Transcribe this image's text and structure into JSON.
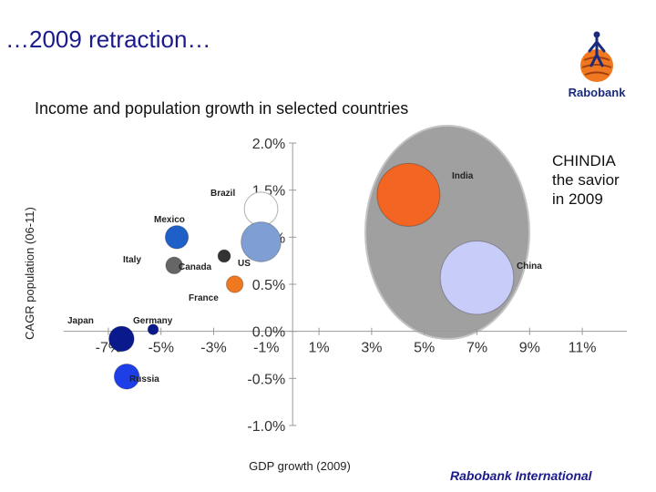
{
  "slide": {
    "title": "…2009 retraction…",
    "callout": "CHINDIA\nthe savior\nin 2009",
    "footer": "Rabobank International"
  },
  "logo": {
    "name": "rabobank-logo",
    "text": "Rabobank"
  },
  "colors": {
    "highlight": "#a0a0a0",
    "india": "#f26522",
    "china": "#c8ccf8",
    "us": "#7f9fd4",
    "brazil": "#ffffff",
    "mexico": "#1e5fc8",
    "italy": "#666666",
    "canada": "#333333",
    "france": "#f07820",
    "japan": "#0a1a8c",
    "germany": "#0a1a8c",
    "russia": "#1e3ee8"
  },
  "chart_data": {
    "type": "scatter",
    "title": "Income and population growth in selected countries",
    "xlabel": "GDP growth (2009)",
    "ylabel": "CAGR population (06-11)",
    "xlim": [
      -8,
      12
    ],
    "ylim": [
      -1.0,
      2.0
    ],
    "x_ticks": [
      "-7%",
      "-5%",
      "-3%",
      "-1%",
      "1%",
      "3%",
      "5%",
      "7%",
      "9%",
      "11%"
    ],
    "y_ticks": [
      "2.0%",
      "1.5%",
      "1.0%",
      "0.5%",
      "0.0%",
      "-0.5%",
      "-1.0%"
    ],
    "grid": false,
    "points": [
      {
        "label": "India",
        "x": 4.4,
        "y": 1.45,
        "size": 3.0,
        "color": "#f26522"
      },
      {
        "label": "China",
        "x": 7.0,
        "y": 0.57,
        "size": 3.5,
        "color": "#c8ccf8"
      },
      {
        "label": "Brazil",
        "x": -1.2,
        "y": 1.3,
        "size": 1.6,
        "color": "#ffffff"
      },
      {
        "label": "US",
        "x": -1.2,
        "y": 0.95,
        "size": 1.9,
        "color": "#7f9fd4"
      },
      {
        "label": "Mexico",
        "x": -4.4,
        "y": 1.0,
        "size": 1.1,
        "color": "#1e5fc8"
      },
      {
        "label": "Italy",
        "x": -4.5,
        "y": 0.7,
        "size": 0.8,
        "color": "#666666"
      },
      {
        "label": "Canada",
        "x": -2.6,
        "y": 0.8,
        "size": 0.6,
        "color": "#333333"
      },
      {
        "label": "France",
        "x": -2.2,
        "y": 0.5,
        "size": 0.8,
        "color": "#f07820"
      },
      {
        "label": "Japan",
        "x": -6.5,
        "y": -0.08,
        "size": 1.2,
        "color": "#0a1a8c"
      },
      {
        "label": "Germany",
        "x": -5.3,
        "y": 0.02,
        "size": 0.5,
        "color": "#0a1a8c"
      },
      {
        "label": "Russia",
        "x": -6.3,
        "y": -0.48,
        "size": 1.2,
        "color": "#1e3ee8"
      }
    ],
    "highlight_group": {
      "members": [
        "India",
        "China"
      ],
      "shape": "ellipse"
    }
  }
}
